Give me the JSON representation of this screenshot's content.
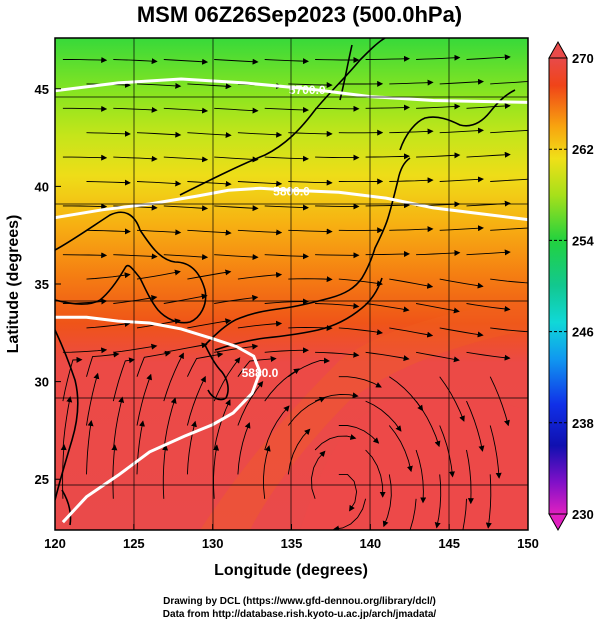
{
  "title": "MSM 06Z26Sep2023 (500.0hPa)",
  "map": {
    "xlabel": "Longitude (degrees)",
    "ylabel": "Latitude  (degrees)",
    "lon_range": [
      120,
      150
    ],
    "lat_range": [
      22.4,
      47.6
    ],
    "lon_ticks": [
      "120",
      "125",
      "130",
      "135",
      "140",
      "145",
      "150"
    ],
    "lat_ticks": [
      "25",
      "30",
      "35",
      "40",
      "45"
    ],
    "grid": true,
    "contours": [
      {
        "label": "5700.0",
        "points": [
          [
            120,
            44.9
          ],
          [
            124,
            45.3
          ],
          [
            128,
            45.5
          ],
          [
            132,
            45.3
          ],
          [
            136,
            45.0
          ],
          [
            140,
            44.6
          ],
          [
            144,
            44.4
          ],
          [
            150,
            44.3
          ]
        ]
      },
      {
        "label": "5800.0",
        "points": [
          [
            120,
            38.4
          ],
          [
            123,
            38.8
          ],
          [
            126,
            39.1
          ],
          [
            129,
            39.5
          ],
          [
            131,
            39.8
          ],
          [
            133,
            39.9
          ],
          [
            135,
            39.8
          ],
          [
            138,
            39.7
          ],
          [
            141,
            39.4
          ],
          [
            144,
            38.9
          ],
          [
            147,
            38.6
          ],
          [
            150,
            38.3
          ]
        ]
      },
      {
        "label": "5880.0",
        "points": [
          [
            120,
            33.3
          ],
          [
            122,
            33.3
          ],
          [
            124,
            33.1
          ],
          [
            126,
            33.0
          ],
          [
            128,
            32.7
          ],
          [
            130,
            32.2
          ],
          [
            131.5,
            31.8
          ],
          [
            132.6,
            31.3
          ],
          [
            133,
            30.5
          ],
          [
            132.5,
            29.4
          ],
          [
            131.3,
            28.4
          ],
          [
            130,
            27.8
          ],
          [
            128.2,
            27.2
          ],
          [
            126,
            26.4
          ],
          [
            124,
            25.2
          ],
          [
            122,
            24.1
          ],
          [
            120.5,
            22.8
          ]
        ]
      }
    ]
  },
  "colorbar": {
    "vmin": 230,
    "vmax": 270,
    "ticks": [
      "270",
      "262",
      "254",
      "246",
      "238",
      "230"
    ]
  },
  "footer": {
    "line1": "Drawing by DCL (https://www.gfd-dennou.org/library/dcl/)",
    "line2": "Data from http://database.rish.kyoto-u.ac.jp/arch/jmadata/"
  }
}
